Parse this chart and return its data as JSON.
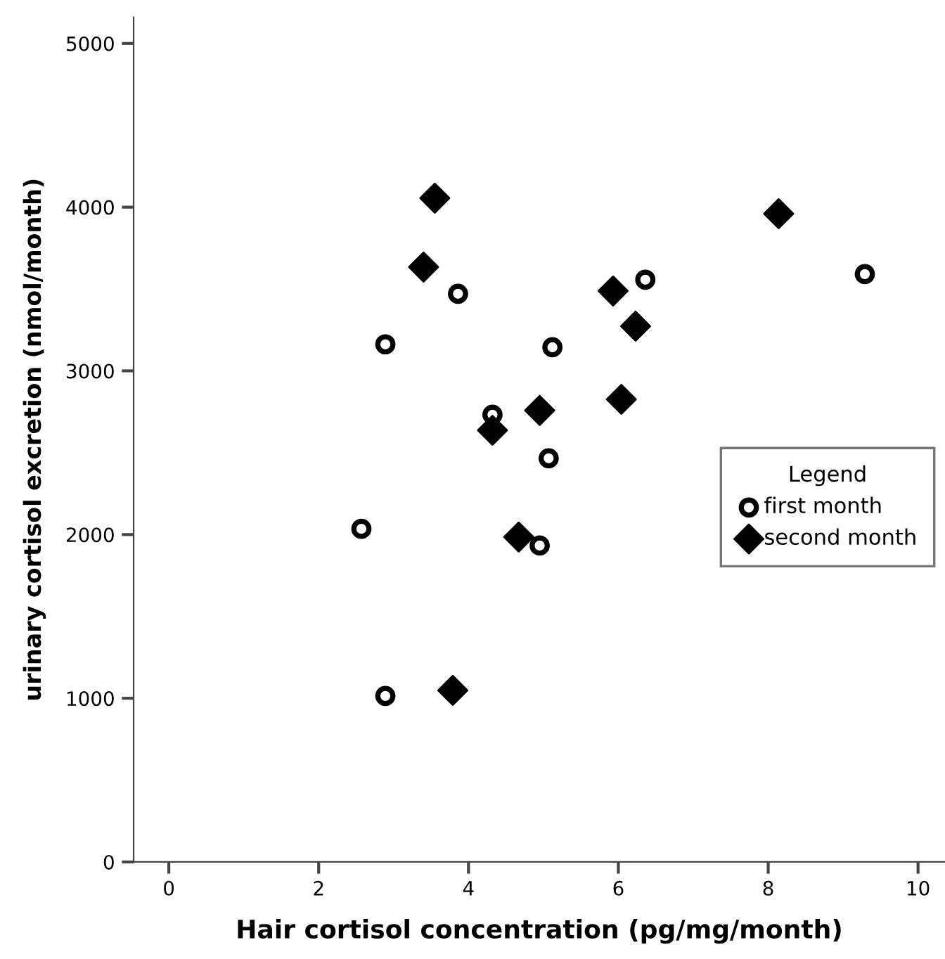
{
  "chart_data": {
    "type": "scatter",
    "xlabel": "Hair cortisol concentration (pg/mg/month)",
    "ylabel": "urinary cortisol excretion (nmol/month)",
    "legend_title": "Legend",
    "legend": "right",
    "xlim": [
      -0.47,
      10.36
    ],
    "xticks": [
      0,
      2,
      4,
      6,
      8,
      10
    ],
    "ylim": [
      0,
      5160
    ],
    "yticks": [
      0,
      1000,
      2000,
      3000,
      4000,
      5000
    ],
    "grid": false,
    "series": [
      {
        "name": "first month",
        "color": "#000000",
        "marker": "circle",
        "x": [
          2.57,
          2.89,
          2.89,
          3.86,
          4.32,
          5.12,
          5.07,
          4.95,
          6.36,
          9.29
        ],
        "values": [
          2035,
          1014,
          3162,
          3471,
          2732,
          3144,
          2466,
          1933,
          3557,
          3591
        ]
      },
      {
        "name": "second month",
        "color": "#000000",
        "marker": "diamond",
        "x": [
          3.55,
          3.4,
          4.32,
          4.95,
          4.67,
          3.79,
          5.93,
          6.23,
          6.04,
          8.14
        ],
        "values": [
          4055,
          3634,
          2637,
          2758,
          1985,
          1048,
          3488,
          3273,
          2826,
          3960
        ]
      }
    ]
  }
}
